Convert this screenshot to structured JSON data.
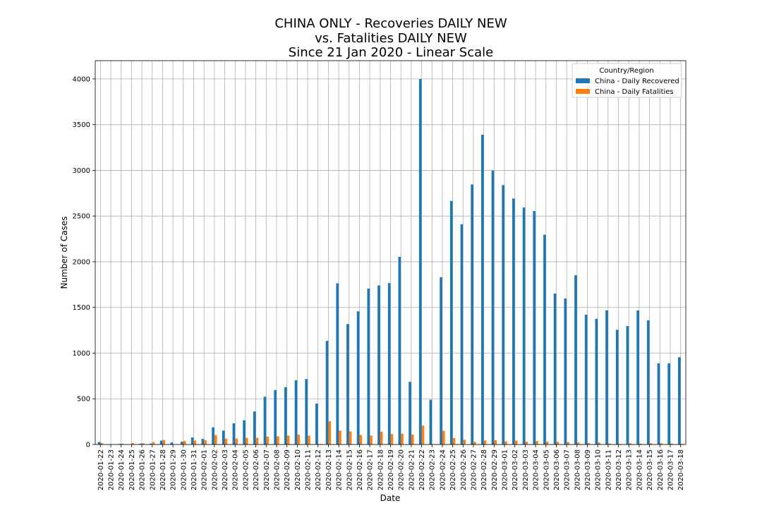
{
  "chart_data": {
    "type": "bar",
    "title_lines": [
      "CHINA ONLY - Recoveries DAILY NEW",
      "vs. Fatalities DAILY NEW",
      "Since 21 Jan 2020 - Linear Scale"
    ],
    "xlabel": "Date",
    "ylabel": "Number of Cases",
    "ylim": [
      0,
      4200
    ],
    "yticks": [
      0,
      500,
      1000,
      1500,
      2000,
      2500,
      3000,
      3500,
      4000
    ],
    "grid": true,
    "legend": {
      "title": "Country/Region",
      "placement": "top-right"
    },
    "categories": [
      "2020-01-22",
      "2020-01-23",
      "2020-01-24",
      "2020-01-25",
      "2020-01-26",
      "2020-01-27",
      "2020-01-28",
      "2020-01-29",
      "2020-01-30",
      "2020-01-31",
      "2020-02-01",
      "2020-02-02",
      "2020-02-03",
      "2020-02-04",
      "2020-02-05",
      "2020-02-06",
      "2020-02-07",
      "2020-02-08",
      "2020-02-09",
      "2020-02-10",
      "2020-02-11",
      "2020-02-12",
      "2020-02-13",
      "2020-02-14",
      "2020-02-15",
      "2020-02-16",
      "2020-02-17",
      "2020-02-18",
      "2020-02-19",
      "2020-02-20",
      "2020-02-21",
      "2020-02-22",
      "2020-02-23",
      "2020-02-24",
      "2020-02-25",
      "2020-02-26",
      "2020-02-27",
      "2020-02-28",
      "2020-02-29",
      "2020-03-01",
      "2020-03-02",
      "2020-03-03",
      "2020-03-04",
      "2020-03-05",
      "2020-03-06",
      "2020-03-07",
      "2020-03-08",
      "2020-03-09",
      "2020-03-10",
      "2020-03-11",
      "2020-03-12",
      "2020-03-13",
      "2020-03-14",
      "2020-03-15",
      "2020-03-16",
      "2020-03-17",
      "2020-03-18"
    ],
    "series": [
      {
        "name": "China - Daily Recovered",
        "color": "#1f77b4",
        "values": [
          28,
          2,
          6,
          3,
          9,
          10,
          43,
          21,
          31,
          77,
          61,
          188,
          152,
          232,
          265,
          361,
          523,
          596,
          627,
          704,
          716,
          448,
          1134,
          1764,
          1318,
          1457,
          1706,
          1741,
          1766,
          2054,
          686,
          4000,
          490,
          1830,
          2665,
          2410,
          2846,
          3390,
          2997,
          2839,
          2692,
          2593,
          2555,
          2296,
          1652,
          1597,
          1852,
          1420,
          1376,
          1468,
          1256,
          1296,
          1467,
          1359,
          888,
          888,
          955
        ]
      },
      {
        "name": "China - Daily Fatalities",
        "color": "#ff7f0e",
        "values": [
          17,
          0,
          8,
          16,
          14,
          26,
          49,
          2,
          38,
          43,
          46,
          103,
          64,
          66,
          73,
          73,
          86,
          89,
          97,
          108,
          97,
          6,
          254,
          152,
          143,
          105,
          98,
          139,
          115,
          118,
          109,
          207,
          2,
          150,
          71,
          52,
          29,
          44,
          47,
          35,
          42,
          31,
          38,
          30,
          28,
          27,
          22,
          17,
          22,
          11,
          7,
          14,
          10,
          14,
          13,
          11,
          8
        ]
      }
    ]
  }
}
